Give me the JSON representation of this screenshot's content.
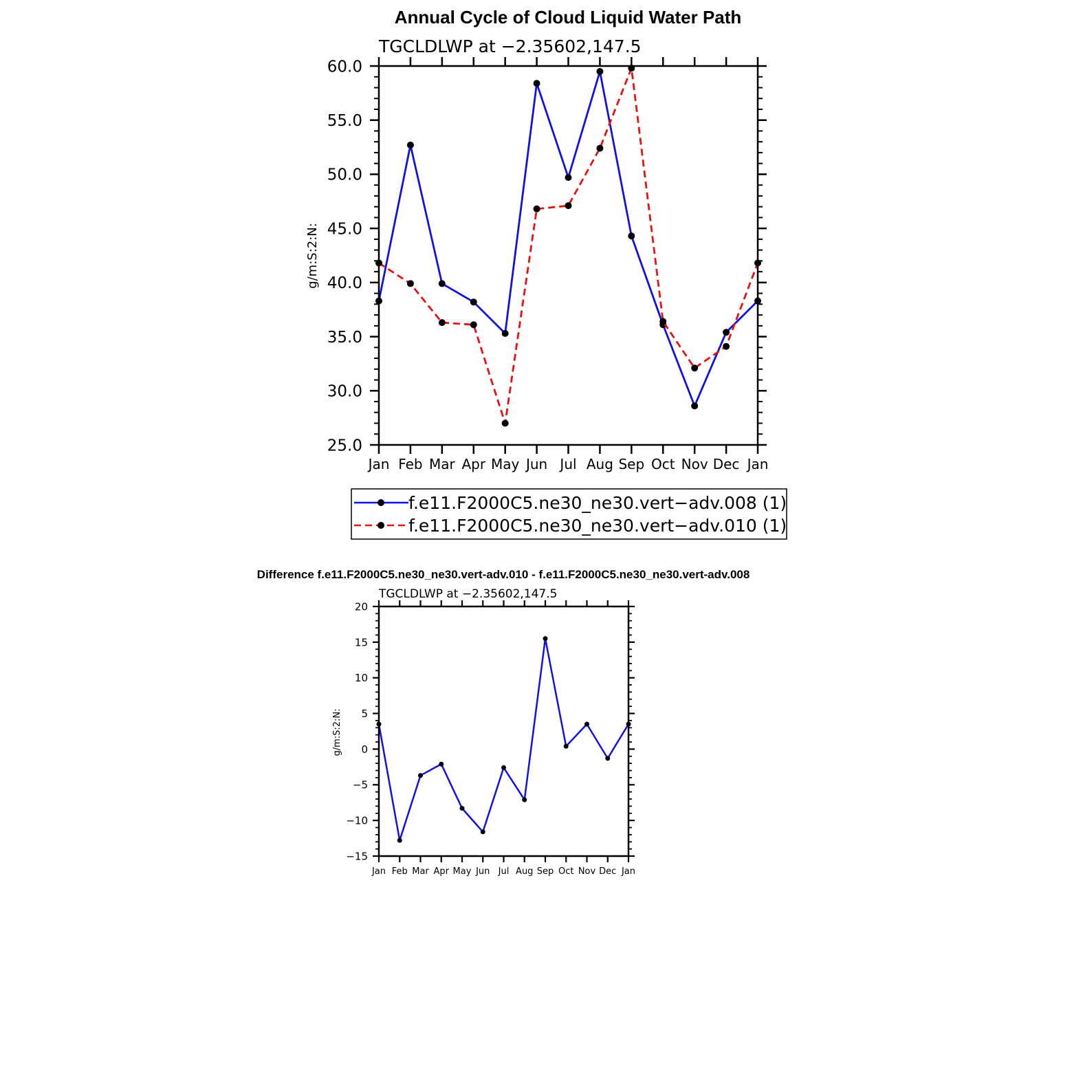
{
  "chart_data": [
    {
      "type": "line",
      "title": "Annual Cycle of Cloud Liquid Water Path",
      "subtitle": "TGCLDLWP at −2.35602,147.5",
      "ylabel": "g/m:S:2:N:",
      "xlabel": "",
      "categories": [
        "Jan",
        "Feb",
        "Mar",
        "Apr",
        "May",
        "Jun",
        "Jul",
        "Aug",
        "Sep",
        "Oct",
        "Nov",
        "Dec",
        "Jan"
      ],
      "ylim": [
        25,
        60
      ],
      "yticks": [
        "25.0",
        "30.0",
        "35.0",
        "40.0",
        "45.0",
        "50.0",
        "55.0",
        "60.0"
      ],
      "legend_position": "bottom",
      "series": [
        {
          "name": "f.e11.F2000C5.ne30_ne30.vert−adv.008 (1)",
          "color": "#1010e8",
          "dash": "solid",
          "values": [
            38.3,
            52.7,
            39.9,
            38.2,
            35.3,
            58.4,
            49.7,
            59.5,
            44.3,
            36.1,
            28.6,
            35.4,
            38.3
          ]
        },
        {
          "name": "f.e11.F2000C5.ne30_ne30.vert−adv.010 (1)",
          "color": "#e81010",
          "dash": "dashed",
          "values": [
            41.8,
            39.9,
            36.3,
            36.1,
            27.0,
            46.8,
            47.1,
            52.4,
            59.8,
            36.4,
            32.1,
            34.1,
            41.8
          ]
        }
      ]
    },
    {
      "type": "line",
      "title": "Difference f.e11.F2000C5.ne30_ne30.vert-adv.010 - f.e11.F2000C5.ne30_ne30.vert-adv.008",
      "subtitle": "TGCLDLWP at −2.35602,147.5",
      "ylabel": "g/m:S:2:N:",
      "xlabel": "",
      "categories": [
        "Jan",
        "Feb",
        "Mar",
        "Apr",
        "May",
        "Jun",
        "Jul",
        "Aug",
        "Sep",
        "Oct",
        "Nov",
        "Dec",
        "Jan"
      ],
      "ylim": [
        -15,
        20
      ],
      "yticks": [
        "−15",
        "−10",
        "−5",
        "0",
        "5",
        "10",
        "15",
        "20"
      ],
      "series": [
        {
          "color": "#1010e8",
          "dash": "solid",
          "values": [
            3.5,
            -12.8,
            -3.7,
            -2.1,
            -8.3,
            -11.6,
            -2.6,
            -7.1,
            15.5,
            0.4,
            3.5,
            -1.3,
            3.5
          ]
        }
      ]
    }
  ]
}
